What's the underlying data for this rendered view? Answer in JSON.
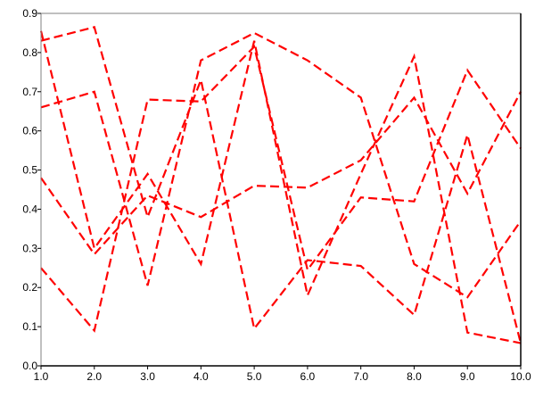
{
  "chart_data": {
    "type": "line",
    "title": "",
    "xlabel": "",
    "ylabel": "",
    "xlim": [
      1,
      10
    ],
    "ylim": [
      0,
      0.9
    ],
    "grid": false,
    "line_style": "dashed",
    "x": [
      1,
      2,
      3,
      4,
      5,
      6,
      7,
      8,
      9,
      10
    ],
    "x_tick_labels": [
      "1.0",
      "2.0",
      "3.0",
      "4.0",
      "5.0",
      "6.0",
      "7.0",
      "8.0",
      "9.0",
      "10.0"
    ],
    "y_ticks": [
      0,
      0.1,
      0.2,
      0.3,
      0.4,
      0.5,
      0.6,
      0.7,
      0.8,
      0.9
    ],
    "y_tick_labels": [
      "0.0",
      "0.1",
      "0.2",
      "0.3",
      "0.4",
      "0.5",
      "0.6",
      "0.7",
      "0.8",
      "0.9"
    ],
    "series": [
      {
        "color": "#ff0000",
        "values": [
          0.855,
          0.3,
          0.49,
          0.26,
          0.83,
          0.18,
          0.49,
          0.79,
          0.085,
          0.058
        ]
      },
      {
        "color": "#ff0000",
        "values": [
          0.83,
          0.865,
          0.38,
          0.73,
          0.095,
          0.27,
          0.255,
          0.13,
          0.59,
          0.058
        ]
      },
      {
        "color": "#ff0000",
        "values": [
          0.66,
          0.7,
          0.205,
          0.78,
          0.85,
          0.78,
          0.685,
          0.26,
          0.175,
          0.37
        ]
      },
      {
        "color": "#ff0000",
        "values": [
          0.25,
          0.09,
          0.68,
          0.675,
          0.815,
          0.245,
          0.43,
          0.42,
          0.755,
          0.555
        ]
      },
      {
        "color": "#ff0000",
        "values": [
          0.48,
          0.285,
          0.435,
          0.38,
          0.46,
          0.455,
          0.525,
          0.685,
          0.44,
          0.7
        ]
      }
    ]
  }
}
